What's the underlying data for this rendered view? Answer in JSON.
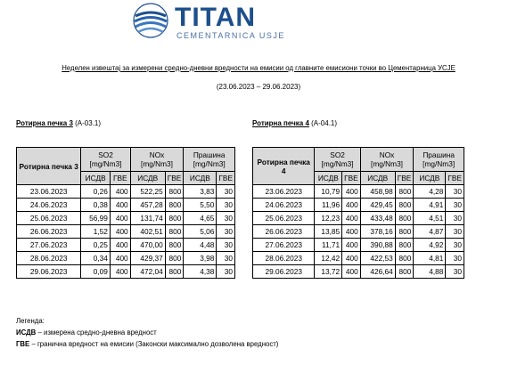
{
  "logo": {
    "name": "TITAN",
    "sub": "CEMENTARNICA USJE"
  },
  "report": {
    "title": "Неделен извештај за измерени средно-дневни вредности на емисии од главните емисиони точки во Цементарница УСЈЕ",
    "period": "(23.06.2023 – 29.06.2023)"
  },
  "columns": {
    "kiln_header": "Ротирна печка 3",
    "so2": "SO2",
    "so2_unit": "[mg/Nm3]",
    "nox": "NOx",
    "nox_unit": "[mg/Nm3]",
    "dust": "Прашина",
    "dust_unit": "[mg/Nm3]",
    "isdv": "ИСДВ",
    "gve": "ГВЕ"
  },
  "kilns": [
    {
      "name": "Ротирна печка 3",
      "code": "(A-03.1)",
      "header": "Ротирна печка 3",
      "rows": [
        {
          "date": "23.06.2023",
          "so2": "0,26",
          "so2_gve": "400",
          "nox": "522,25",
          "nox_gve": "800",
          "dust": "3,83",
          "dust_gve": "30"
        },
        {
          "date": "24.06.2023",
          "so2": "0,38",
          "so2_gve": "400",
          "nox": "457,28",
          "nox_gve": "800",
          "dust": "5,50",
          "dust_gve": "30"
        },
        {
          "date": "25.06.2023",
          "so2": "56,99",
          "so2_gve": "400",
          "nox": "131,74",
          "nox_gve": "800",
          "dust": "4,65",
          "dust_gve": "30"
        },
        {
          "date": "26.06.2023",
          "so2": "1,52",
          "so2_gve": "400",
          "nox": "402,51",
          "nox_gve": "800",
          "dust": "5,06",
          "dust_gve": "30"
        },
        {
          "date": "27.06.2023",
          "so2": "0,25",
          "so2_gve": "400",
          "nox": "470,00",
          "nox_gve": "800",
          "dust": "4,48",
          "dust_gve": "30"
        },
        {
          "date": "28.06.2023",
          "so2": "0,34",
          "so2_gve": "400",
          "nox": "429,37",
          "nox_gve": "800",
          "dust": "3,98",
          "dust_gve": "30"
        },
        {
          "date": "29.06.2023",
          "so2": "0,09",
          "so2_gve": "400",
          "nox": "472,04",
          "nox_gve": "800",
          "dust": "4,38",
          "dust_gve": "30"
        }
      ]
    },
    {
      "name": "Ротирна печка 4",
      "code": "(A-04.1)",
      "header": "Ротирна печка 4",
      "rows": [
        {
          "date": "23.06.2023",
          "so2": "10,79",
          "so2_gve": "400",
          "nox": "458,98",
          "nox_gve": "800",
          "dust": "4,28",
          "dust_gve": "30"
        },
        {
          "date": "24.06.2023",
          "so2": "11,96",
          "so2_gve": "400",
          "nox": "429,45",
          "nox_gve": "800",
          "dust": "4,91",
          "dust_gve": "30"
        },
        {
          "date": "25.06.2023",
          "so2": "12,23",
          "so2_gve": "400",
          "nox": "433,48",
          "nox_gve": "800",
          "dust": "4,51",
          "dust_gve": "30"
        },
        {
          "date": "26.06.2023",
          "so2": "13,85",
          "so2_gve": "400",
          "nox": "378,16",
          "nox_gve": "800",
          "dust": "4,87",
          "dust_gve": "30"
        },
        {
          "date": "27.06.2023",
          "so2": "11,71",
          "so2_gve": "400",
          "nox": "390,88",
          "nox_gve": "800",
          "dust": "4,92",
          "dust_gve": "30"
        },
        {
          "date": "28.06.2023",
          "so2": "12,42",
          "so2_gve": "400",
          "nox": "422,53",
          "nox_gve": "800",
          "dust": "4,81",
          "dust_gve": "30"
        },
        {
          "date": "29.06.2023",
          "so2": "13,72",
          "so2_gve": "400",
          "nox": "426,64",
          "nox_gve": "800",
          "dust": "4,88",
          "dust_gve": "30"
        }
      ]
    }
  ],
  "legend": {
    "title": "Легенда:",
    "items": [
      {
        "term": "ИСДВ",
        "desc": "– измерена средно-дневна вредност"
      },
      {
        "term": "ГВЕ",
        "desc": "– гранична вредност на емисии (Законски максимално дозволена вредност)"
      }
    ]
  }
}
